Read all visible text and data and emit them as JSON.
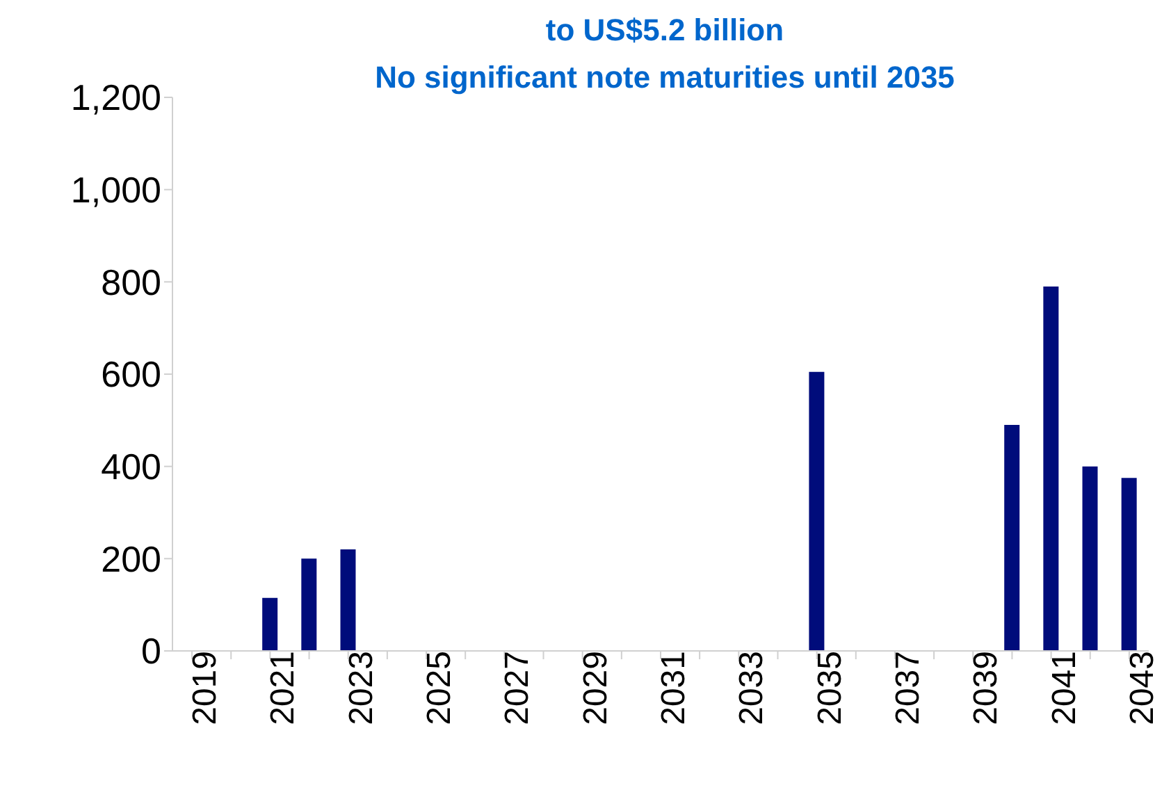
{
  "chart_data": {
    "type": "bar",
    "categories": [
      "2019",
      null,
      "2021",
      null,
      "2023",
      null,
      "2025",
      null,
      "2027",
      null,
      "2029",
      null,
      "2031",
      null,
      "2033",
      null,
      "2035",
      null,
      "2037",
      null,
      "2039",
      null,
      "2041",
      null,
      "2043"
    ],
    "values": [
      null,
      null,
      115,
      200,
      220,
      null,
      null,
      null,
      null,
      null,
      null,
      null,
      null,
      null,
      null,
      null,
      605,
      null,
      null,
      null,
      null,
      490,
      790,
      400,
      375
    ],
    "color": "#000c7b",
    "ylim": [
      0,
      1200
    ],
    "yticks": [
      0,
      {
        "value": 200,
        "label": "200"
      },
      {
        "value": 400,
        "label": "400"
      },
      {
        "value": 600,
        "label": "600"
      },
      {
        "value": 800,
        "label": "800"
      },
      {
        "value": 1000,
        "label": "1,000"
      },
      {
        "value": 1200,
        "label": "1,200"
      }
    ],
    "annotations": [
      "to US$5.2 billion",
      "No significant note maturities until 2035"
    ],
    "grid": false,
    "legend": false
  }
}
